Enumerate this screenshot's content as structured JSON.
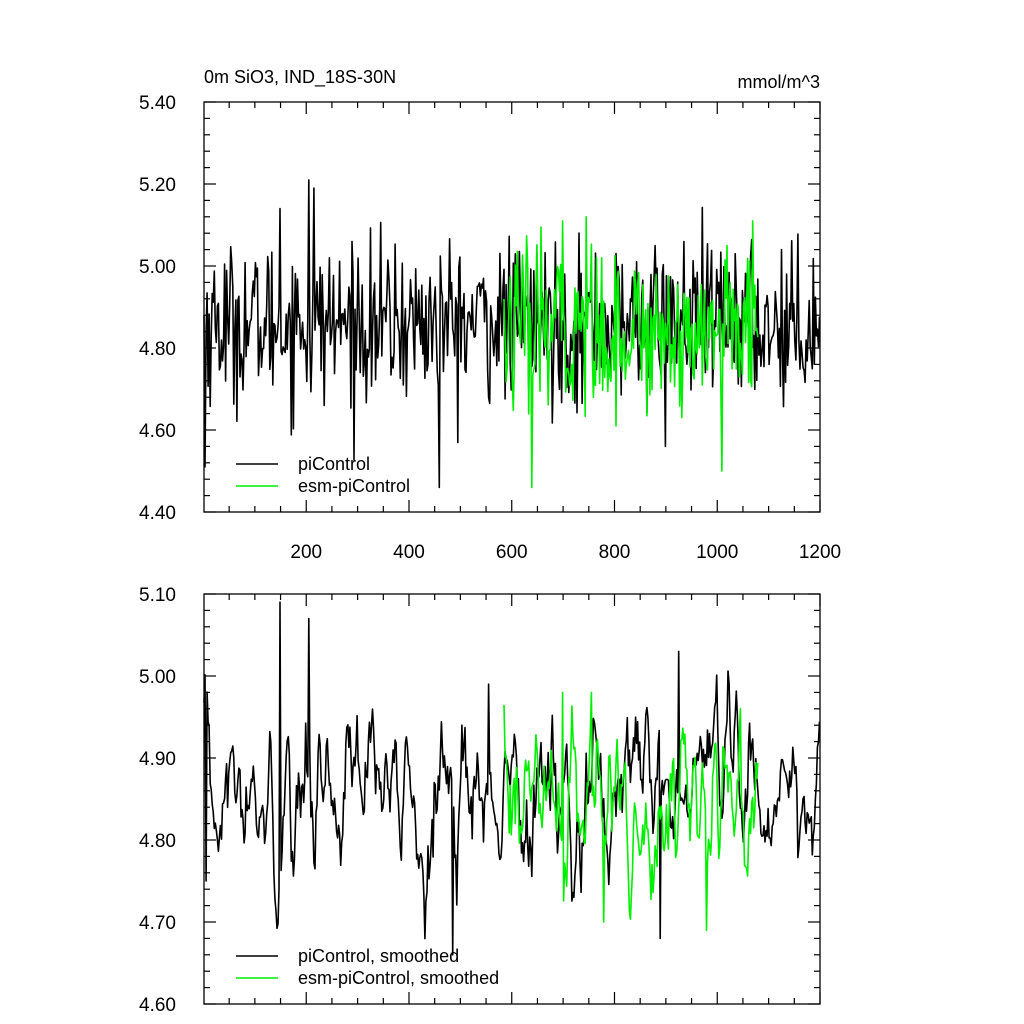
{
  "title_left": "0m SiO3, IND_18S-30N",
  "units": "mmol/m^3",
  "colors": {
    "piControl": "#000000",
    "esm_piControl": "#00ee00"
  },
  "chart_data": [
    {
      "type": "line",
      "panel": "top",
      "title": "0m SiO3, IND_18S-30N",
      "units_label": "mmol/m^3",
      "xlim": [
        1,
        1200
      ],
      "ylim": [
        4.4,
        5.4
      ],
      "x_ticks": [
        200,
        400,
        600,
        800,
        1000,
        1200
      ],
      "x_tick_labels": [
        "200",
        "400",
        "600",
        "800",
        "1000",
        "1200"
      ],
      "y_ticks": [
        4.4,
        4.6,
        4.8,
        5.0,
        5.2,
        5.4
      ],
      "y_tick_labels": [
        "4.40",
        "4.60",
        "4.80",
        "5.00",
        "5.20",
        "5.40"
      ],
      "legend_position": "bottom-left",
      "series": [
        {
          "name": "piControl",
          "color": "#000000",
          "x_range": [
            1,
            1200
          ],
          "mean": 4.86,
          "noise_sd": 0.095,
          "extremes": [
            [
              4,
              4.51
            ],
            [
              150,
              5.14
            ],
            [
              205,
              5.21
            ],
            [
              215,
              5.19
            ],
            [
              460,
              4.46
            ],
            [
              545,
              4.97
            ],
            [
              880,
              5.05
            ],
            [
              900,
              4.56
            ],
            [
              1035,
              5.03
            ]
          ]
        },
        {
          "name": "esm-piControl",
          "color": "#00ee00",
          "x_range": [
            585,
            1080
          ],
          "mean": 4.84,
          "noise_sd": 0.1,
          "extremes": [
            [
              640,
              4.46
            ],
            [
              700,
              5.11
            ],
            [
              745,
              5.12
            ],
            [
              1010,
              4.5
            ],
            [
              1020,
              5.05
            ]
          ]
        }
      ]
    },
    {
      "type": "line",
      "panel": "bottom",
      "xlim": [
        1,
        1200
      ],
      "ylim": [
        4.6,
        5.1
      ],
      "x_ticks": [
        200,
        400,
        600,
        800,
        1000,
        1200
      ],
      "y_ticks": [
        4.6,
        4.7,
        4.8,
        4.9,
        5.0,
        5.1
      ],
      "y_tick_labels": [
        "4.60",
        "4.70",
        "4.80",
        "4.90",
        "5.00",
        "5.10"
      ],
      "legend_position": "bottom-left",
      "series": [
        {
          "name": "piControl, smoothed",
          "color": "#000000",
          "x_range": [
            1,
            1200
          ],
          "mean": 4.86,
          "noise_sd": 0.055,
          "extremes": [
            [
              5,
              4.75
            ],
            [
              150,
              5.09
            ],
            [
              205,
              5.07
            ],
            [
              485,
              4.66
            ],
            [
              555,
              4.99
            ],
            [
              890,
              4.68
            ],
            [
              925,
              5.03
            ]
          ]
        },
        {
          "name": "esm-piControl, smoothed",
          "color": "#00ee00",
          "x_range": [
            585,
            1080
          ],
          "mean": 4.84,
          "noise_sd": 0.055,
          "extremes": [
            [
              700,
              4.98
            ],
            [
              755,
              4.98
            ],
            [
              780,
              4.7
            ],
            [
              980,
              4.69
            ],
            [
              1045,
              4.96
            ]
          ]
        }
      ]
    }
  ]
}
